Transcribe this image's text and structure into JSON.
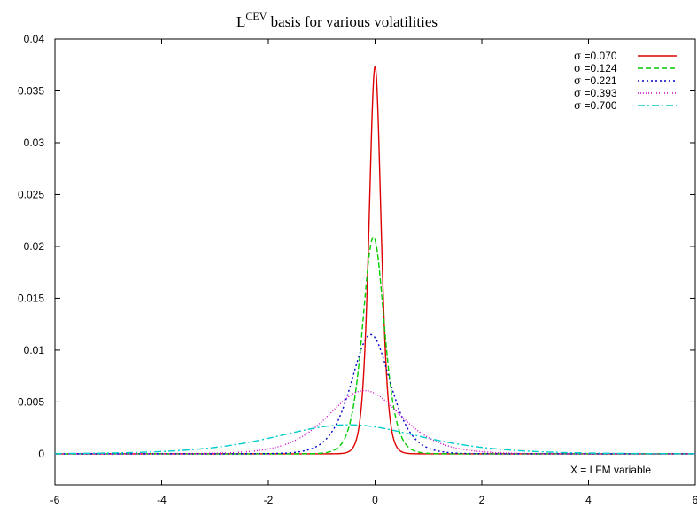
{
  "chart_data": {
    "type": "line",
    "title": {
      "main": "L",
      "superscript": "CEV",
      "rest": " basis for various volatilities"
    },
    "xlabel": "X = LFM variable",
    "ylabel": "",
    "xlim": [
      -6,
      6
    ],
    "ylim": [
      -0.003,
      0.04
    ],
    "x_ticks": [
      "-6",
      "-4",
      "-2",
      "0",
      "2",
      "4",
      "6"
    ],
    "y_ticks": [
      "0",
      "0.005",
      "0.01",
      "0.015",
      "0.02",
      "0.025",
      "0.03",
      "0.035",
      "0.04"
    ],
    "x_tick_values": [
      -6,
      -4,
      -2,
      0,
      2,
      4,
      6
    ],
    "y_tick_values": [
      0,
      0.005,
      0.01,
      0.015,
      0.02,
      0.025,
      0.03,
      0.035,
      0.04
    ],
    "grid": false,
    "legend_position": "top-right",
    "series": [
      {
        "name": "=0.070",
        "symbol": "σ",
        "color": "#dd0000",
        "dash": "solid",
        "peak_x": 0.0,
        "peak_y": 0.0374,
        "width": 0.15
      },
      {
        "name": "=0.124",
        "symbol": "σ",
        "color": "#00cc00",
        "dash": "dashed",
        "peak_x": -0.03,
        "peak_y": 0.0209,
        "width": 0.27
      },
      {
        "name": "=0.221",
        "symbol": "σ",
        "color": "#0000cc",
        "dash": "dotted",
        "peak_x": -0.08,
        "peak_y": 0.0115,
        "width": 0.49
      },
      {
        "name": "=0.393",
        "symbol": "σ",
        "color": "#cc00cc",
        "dash": "fine-dotted",
        "peak_x": -0.2,
        "peak_y": 0.0061,
        "width": 0.92
      },
      {
        "name": "=0.700",
        "symbol": "σ",
        "color": "#00cccc",
        "dash": "dash-dot",
        "peak_x": -0.5,
        "peak_y": 0.0028,
        "width": 1.8
      }
    ]
  }
}
